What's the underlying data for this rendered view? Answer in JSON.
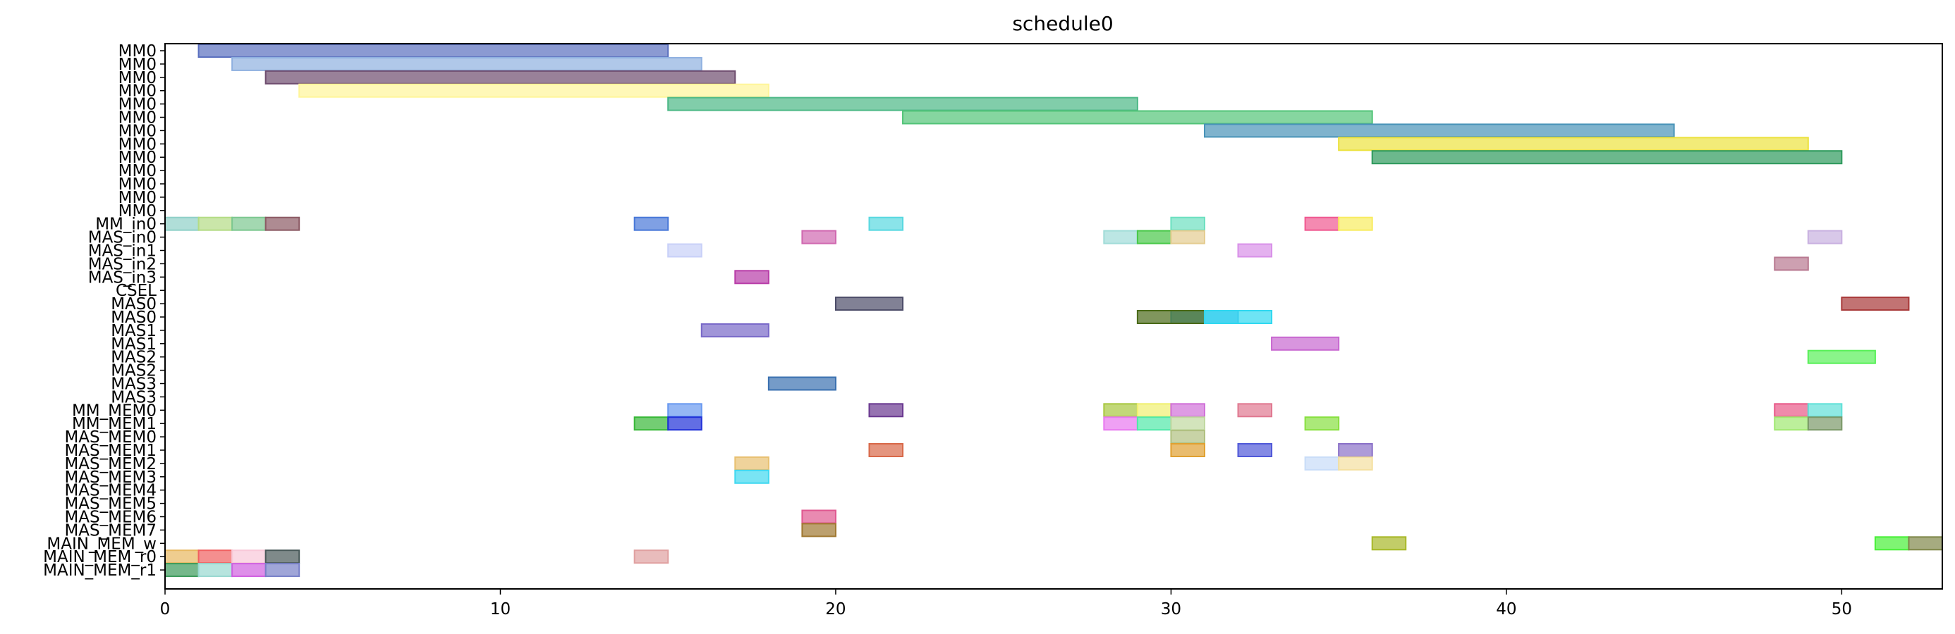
{
  "chart_data": {
    "type": "gantt",
    "title": "schedule0",
    "xlabel": "",
    "ylabel": "",
    "xlim": [
      0,
      53
    ],
    "xticks": [
      0,
      10,
      20,
      30,
      40,
      50
    ],
    "grid": false,
    "rows": [
      "MM0",
      "MM0",
      "MM0",
      "MM0",
      "MM0",
      "MM0",
      "MM0",
      "MM0",
      "MM0",
      "MM0",
      "MM0",
      "MM0",
      "MM0",
      "MM_in0",
      "MAS_in0",
      "MAS_in1",
      "MAS_in2",
      "MAS_in3",
      "CSEL",
      "MAS0",
      "MAS0",
      "MAS1",
      "MAS1",
      "MAS2",
      "MAS2",
      "MAS3",
      "MAS3",
      "MM_MEM0",
      "MM_MEM1",
      "MAS_MEM0",
      "MAS_MEM1",
      "MAS_MEM2",
      "MAS_MEM3",
      "MAS_MEM4",
      "MAS_MEM5",
      "MAS_MEM6",
      "MAS_MEM7",
      "MAIN_MEM_w",
      "MAIN_MEM_r0",
      "MAIN_MEM_r1"
    ],
    "tasks": [
      {
        "row": 0,
        "start": 1,
        "end": 15,
        "color": "#5a6fbf"
      },
      {
        "row": 1,
        "start": 2,
        "end": 16,
        "color": "#8fb0e0"
      },
      {
        "row": 2,
        "start": 3,
        "end": 17,
        "color": "#6e4c6e"
      },
      {
        "row": 3,
        "start": 4,
        "end": 18,
        "color": "#fff59a"
      },
      {
        "row": 4,
        "start": 15,
        "end": 29,
        "color": "#4cb886"
      },
      {
        "row": 5,
        "start": 22,
        "end": 36,
        "color": "#52c478"
      },
      {
        "row": 6,
        "start": 31,
        "end": 45,
        "color": "#4893b8"
      },
      {
        "row": 7,
        "start": 35,
        "end": 49,
        "color": "#ece23e"
      },
      {
        "row": 8,
        "start": 36,
        "end": 50,
        "color": "#2e9a5c"
      },
      {
        "row": 13,
        "start": 0,
        "end": 1,
        "color": "#8fd0c8"
      },
      {
        "row": 13,
        "start": 1,
        "end": 2,
        "color": "#b4dc84"
      },
      {
        "row": 13,
        "start": 2,
        "end": 3,
        "color": "#7cc890"
      },
      {
        "row": 13,
        "start": 3,
        "end": 4,
        "color": "#8c5a64"
      },
      {
        "row": 13,
        "start": 14,
        "end": 15,
        "color": "#4878d8"
      },
      {
        "row": 13,
        "start": 21,
        "end": 22,
        "color": "#58d8e0"
      },
      {
        "row": 13,
        "start": 30,
        "end": 31,
        "color": "#6ce0c0"
      },
      {
        "row": 13,
        "start": 34,
        "end": 35,
        "color": "#f05890"
      },
      {
        "row": 13,
        "start": 35,
        "end": 36,
        "color": "#f8ec60"
      },
      {
        "row": 14,
        "start": 19,
        "end": 20,
        "color": "#d068b0"
      },
      {
        "row": 14,
        "start": 28,
        "end": 29,
        "color": "#a0dcd8"
      },
      {
        "row": 14,
        "start": 29,
        "end": 30,
        "color": "#48c848"
      },
      {
        "row": 14,
        "start": 30,
        "end": 31,
        "color": "#e4cc90"
      },
      {
        "row": 14,
        "start": 49,
        "end": 50,
        "color": "#c8b0e0"
      },
      {
        "row": 15,
        "start": 15,
        "end": 16,
        "color": "#c8d0f8"
      },
      {
        "row": 15,
        "start": 32,
        "end": 33,
        "color": "#d890e8"
      },
      {
        "row": 16,
        "start": 48,
        "end": 49,
        "color": "#b87890"
      },
      {
        "row": 17,
        "start": 17,
        "end": 18,
        "color": "#b83ca8"
      },
      {
        "row": 19,
        "start": 20,
        "end": 22,
        "color": "#4c4c68"
      },
      {
        "row": 19,
        "start": 50,
        "end": 52,
        "color": "#a83838"
      },
      {
        "row": 20,
        "start": 30,
        "end": 32,
        "color": "#48b4ec"
      },
      {
        "row": 20,
        "start": 29,
        "end": 31,
        "color": "#4a6a18"
      },
      {
        "row": 20,
        "start": 31,
        "end": 33,
        "color": "#30d8f0"
      },
      {
        "row": 21,
        "start": 16,
        "end": 18,
        "color": "#7868c8"
      },
      {
        "row": 22,
        "start": 33,
        "end": 35,
        "color": "#c868d0"
      },
      {
        "row": 23,
        "start": 49,
        "end": 51,
        "color": "#58f058"
      },
      {
        "row": 25,
        "start": 18,
        "end": 20,
        "color": "#3a70b0"
      },
      {
        "row": 27,
        "start": 15,
        "end": 16,
        "color": "#6898f0"
      },
      {
        "row": 27,
        "start": 21,
        "end": 22,
        "color": "#6a3890"
      },
      {
        "row": 27,
        "start": 28,
        "end": 29,
        "color": "#a8c840"
      },
      {
        "row": 27,
        "start": 29,
        "end": 30,
        "color": "#f0f070"
      },
      {
        "row": 27,
        "start": 30,
        "end": 31,
        "color": "#d070d8"
      },
      {
        "row": 27,
        "start": 32,
        "end": 33,
        "color": "#e07890"
      },
      {
        "row": 27,
        "start": 48,
        "end": 49,
        "color": "#e85888"
      },
      {
        "row": 27,
        "start": 49,
        "end": 50,
        "color": "#60e0d8"
      },
      {
        "row": 28,
        "start": 14,
        "end": 15,
        "color": "#38b838"
      },
      {
        "row": 28,
        "start": 15,
        "end": 16,
        "color": "#2030d8"
      },
      {
        "row": 28,
        "start": 28,
        "end": 29,
        "color": "#e878f0"
      },
      {
        "row": 28,
        "start": 29,
        "end": 30,
        "color": "#50e8a8"
      },
      {
        "row": 28,
        "start": 30,
        "end": 31,
        "color": "#c0d8a0"
      },
      {
        "row": 28,
        "start": 34,
        "end": 35,
        "color": "#88e040"
      },
      {
        "row": 28,
        "start": 48,
        "end": 49,
        "color": "#a0e870"
      },
      {
        "row": 28,
        "start": 49,
        "end": 50,
        "color": "#7a9868"
      },
      {
        "row": 29,
        "start": 30,
        "end": 31,
        "color": "#b0c080"
      },
      {
        "row": 30,
        "start": 21,
        "end": 22,
        "color": "#d86848"
      },
      {
        "row": 30,
        "start": 30,
        "end": 31,
        "color": "#e0a030"
      },
      {
        "row": 30,
        "start": 32,
        "end": 33,
        "color": "#5058d8"
      },
      {
        "row": 30,
        "start": 35,
        "end": 36,
        "color": "#8a70c8"
      },
      {
        "row": 31,
        "start": 17,
        "end": 18,
        "color": "#e8c070"
      },
      {
        "row": 31,
        "start": 34,
        "end": 35,
        "color": "#c8dcf8"
      },
      {
        "row": 31,
        "start": 35,
        "end": 36,
        "color": "#f4e0a0"
      },
      {
        "row": 32,
        "start": 17,
        "end": 18,
        "color": "#40d8f0"
      },
      {
        "row": 35,
        "start": 19,
        "end": 20,
        "color": "#e05890"
      },
      {
        "row": 36,
        "start": 19,
        "end": 20,
        "color": "#a07830"
      },
      {
        "row": 37,
        "start": 36,
        "end": 37,
        "color": "#a8b828"
      },
      {
        "row": 37,
        "start": 51,
        "end": 52,
        "color": "#48f038"
      },
      {
        "row": 37,
        "start": 52,
        "end": 53,
        "color": "#80884a"
      },
      {
        "row": 38,
        "start": 0,
        "end": 1,
        "color": "#e8b860"
      },
      {
        "row": 38,
        "start": 1,
        "end": 2,
        "color": "#f06060"
      },
      {
        "row": 38,
        "start": 2,
        "end": 3,
        "color": "#f8c8d8"
      },
      {
        "row": 38,
        "start": 3,
        "end": 4,
        "color": "#485858"
      },
      {
        "row": 38,
        "start": 14,
        "end": 15,
        "color": "#e0a0a0"
      },
      {
        "row": 39,
        "start": 0,
        "end": 1,
        "color": "#3a9a5a"
      },
      {
        "row": 39,
        "start": 1,
        "end": 2,
        "color": "#98d8d0"
      },
      {
        "row": 39,
        "start": 2,
        "end": 3,
        "color": "#d060e0"
      },
      {
        "row": 39,
        "start": 3,
        "end": 4,
        "color": "#7880c8"
      }
    ]
  }
}
